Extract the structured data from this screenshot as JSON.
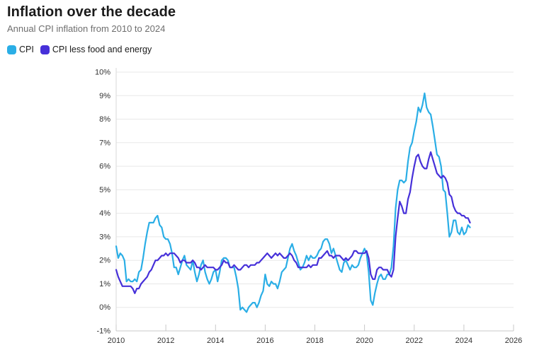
{
  "header": {
    "title": "Inflation over the decade",
    "subtitle": "Annual CPI inflation from 2010 to 2024"
  },
  "legend": [
    {
      "label": "CPI",
      "color": "#2aaee6"
    },
    {
      "label": "CPI less food and energy",
      "color": "#4630d9"
    }
  ],
  "chart_data": {
    "type": "line",
    "title": "Inflation over the decade",
    "subtitle": "Annual CPI inflation from 2010 to 2024",
    "xlabel": "",
    "ylabel": "",
    "xlim": [
      2010,
      2026
    ],
    "ylim": [
      -1,
      10
    ],
    "grid": true,
    "legend_position": "top-left",
    "x_start_year": 2010,
    "points_per_year": 12,
    "x_axis_ticks": [
      "2010",
      "2012",
      "2014",
      "2016",
      "2018",
      "2020",
      "2022",
      "2024",
      "2026"
    ],
    "y_axis_ticks": [
      "10%",
      "9%",
      "8%",
      "7%",
      "6%",
      "5%",
      "4%",
      "3%",
      "2%",
      "1%",
      "0%",
      "-1%"
    ],
    "unit": "%",
    "frequency": "monthly",
    "series": [
      {
        "name": "CPI",
        "color": "#2aaee6",
        "values": [
          2.6,
          2.1,
          2.3,
          2.2,
          2.0,
          1.1,
          1.2,
          1.1,
          1.1,
          1.2,
          1.1,
          1.5,
          1.6,
          2.1,
          2.7,
          3.2,
          3.6,
          3.6,
          3.6,
          3.8,
          3.9,
          3.5,
          3.4,
          3.0,
          2.9,
          2.9,
          2.7,
          2.3,
          1.7,
          1.7,
          1.4,
          1.7,
          2.0,
          2.2,
          1.8,
          1.7,
          1.6,
          2.0,
          1.5,
          1.1,
          1.4,
          1.8,
          2.0,
          1.5,
          1.2,
          1.0,
          1.2,
          1.5,
          1.6,
          1.1,
          1.5,
          2.0,
          2.1,
          2.1,
          2.0,
          1.7,
          1.7,
          1.7,
          1.3,
          0.8,
          -0.1,
          0.0,
          -0.1,
          -0.2,
          0.0,
          0.1,
          0.2,
          0.2,
          0.0,
          0.2,
          0.5,
          0.7,
          1.4,
          1.0,
          0.9,
          1.1,
          1.0,
          1.0,
          0.8,
          1.1,
          1.5,
          1.6,
          1.7,
          2.1,
          2.5,
          2.7,
          2.4,
          2.2,
          1.9,
          1.6,
          1.7,
          1.9,
          2.2,
          2.0,
          2.2,
          2.1,
          2.1,
          2.2,
          2.4,
          2.5,
          2.8,
          2.9,
          2.9,
          2.7,
          2.3,
          2.5,
          2.2,
          1.9,
          1.6,
          1.5,
          1.9,
          2.0,
          1.8,
          1.6,
          1.8,
          1.7,
          1.7,
          1.8,
          2.1,
          2.3,
          2.5,
          2.3,
          1.5,
          0.3,
          0.1,
          0.6,
          1.0,
          1.3,
          1.4,
          1.2,
          1.2,
          1.4,
          1.4,
          1.7,
          2.6,
          4.2,
          5.0,
          5.4,
          5.4,
          5.3,
          5.4,
          6.2,
          6.8,
          7.0,
          7.5,
          7.9,
          8.5,
          8.3,
          8.6,
          9.1,
          8.5,
          8.3,
          8.2,
          7.7,
          7.1,
          6.5,
          6.4,
          6.0,
          5.0,
          4.9,
          4.0,
          3.0,
          3.2,
          3.7,
          3.7,
          3.2,
          3.1,
          3.4,
          3.1,
          3.2,
          3.5,
          3.4
        ]
      },
      {
        "name": "CPI less food and energy",
        "color": "#4630d9",
        "values": [
          1.6,
          1.3,
          1.1,
          0.9,
          0.9,
          0.9,
          0.9,
          0.9,
          0.8,
          0.6,
          0.8,
          0.8,
          1.0,
          1.1,
          1.2,
          1.3,
          1.5,
          1.6,
          1.8,
          2.0,
          2.0,
          2.1,
          2.2,
          2.2,
          2.3,
          2.2,
          2.3,
          2.3,
          2.3,
          2.2,
          2.1,
          1.9,
          2.0,
          2.0,
          1.9,
          1.9,
          1.9,
          2.0,
          1.9,
          1.7,
          1.7,
          1.6,
          1.7,
          1.8,
          1.7,
          1.7,
          1.7,
          1.7,
          1.6,
          1.6,
          1.7,
          1.8,
          2.0,
          1.9,
          1.9,
          1.7,
          1.7,
          1.8,
          1.7,
          1.6,
          1.6,
          1.7,
          1.8,
          1.8,
          1.7,
          1.8,
          1.8,
          1.8,
          1.9,
          1.9,
          2.0,
          2.1,
          2.2,
          2.3,
          2.2,
          2.1,
          2.2,
          2.3,
          2.2,
          2.3,
          2.2,
          2.1,
          2.1,
          2.2,
          2.3,
          2.2,
          2.0,
          1.9,
          1.7,
          1.7,
          1.7,
          1.7,
          1.7,
          1.8,
          1.7,
          1.8,
          1.8,
          1.8,
          2.1,
          2.1,
          2.2,
          2.3,
          2.4,
          2.2,
          2.2,
          2.1,
          2.2,
          2.2,
          2.2,
          2.1,
          2.0,
          2.1,
          2.0,
          2.1,
          2.2,
          2.4,
          2.4,
          2.3,
          2.3,
          2.3,
          2.3,
          2.4,
          2.1,
          1.4,
          1.2,
          1.2,
          1.6,
          1.7,
          1.7,
          1.6,
          1.6,
          1.6,
          1.4,
          1.3,
          1.6,
          3.0,
          3.8,
          4.5,
          4.3,
          4.0,
          4.0,
          4.6,
          4.9,
          5.5,
          6.0,
          6.4,
          6.5,
          6.2,
          6.0,
          5.9,
          5.9,
          6.3,
          6.6,
          6.3,
          6.0,
          5.7,
          5.6,
          5.5,
          5.6,
          5.5,
          5.3,
          4.8,
          4.7,
          4.3,
          4.1,
          4.0,
          4.0,
          3.9,
          3.9,
          3.8,
          3.8,
          3.6
        ]
      }
    ]
  }
}
